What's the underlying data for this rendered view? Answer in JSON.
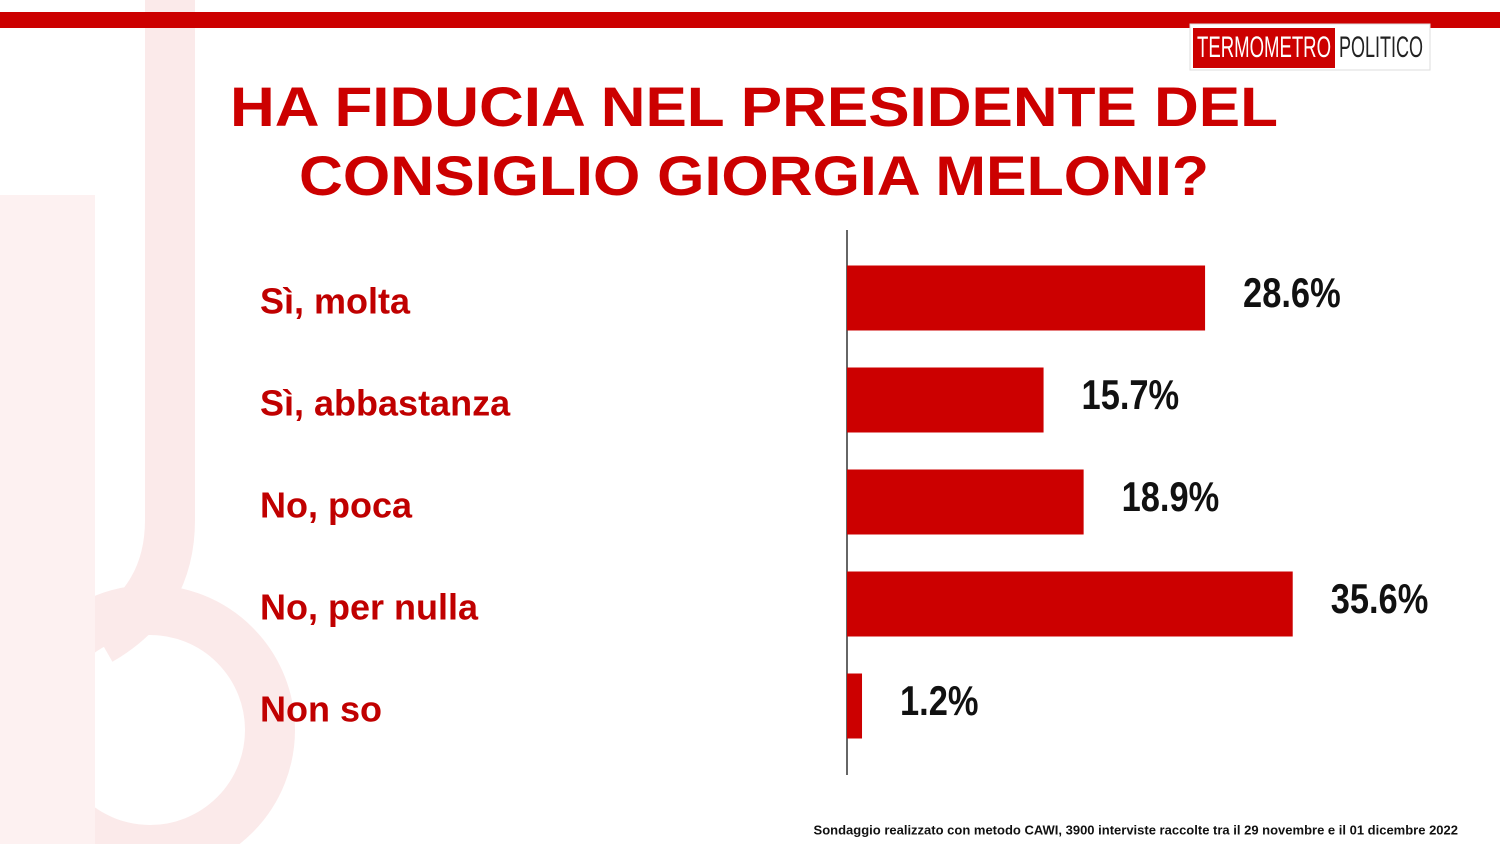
{
  "chart_data": {
    "type": "bar",
    "orientation": "horizontal",
    "title": [
      "HA FIDUCIA NEL PRESIDENTE DEL",
      "CONSIGLIO GIORGIA MELONI?"
    ],
    "categories": [
      "Sì, molta",
      "Sì, abbastanza",
      "No, poca",
      "No, per nulla",
      "Non so"
    ],
    "values": [
      28.6,
      15.7,
      18.9,
      35.6,
      1.2
    ],
    "value_labels": [
      "28.6%",
      "15.7%",
      "18.9%",
      "35.6%",
      "1.2%"
    ],
    "color": "#cc0000",
    "logo": [
      "TERMOMETRO",
      "POLITICO"
    ],
    "note": "Sondaggio realizzato con metodo CAWI, 3900 interviste raccolte tra il 29 novembre e il 01 dicembre 2022"
  }
}
